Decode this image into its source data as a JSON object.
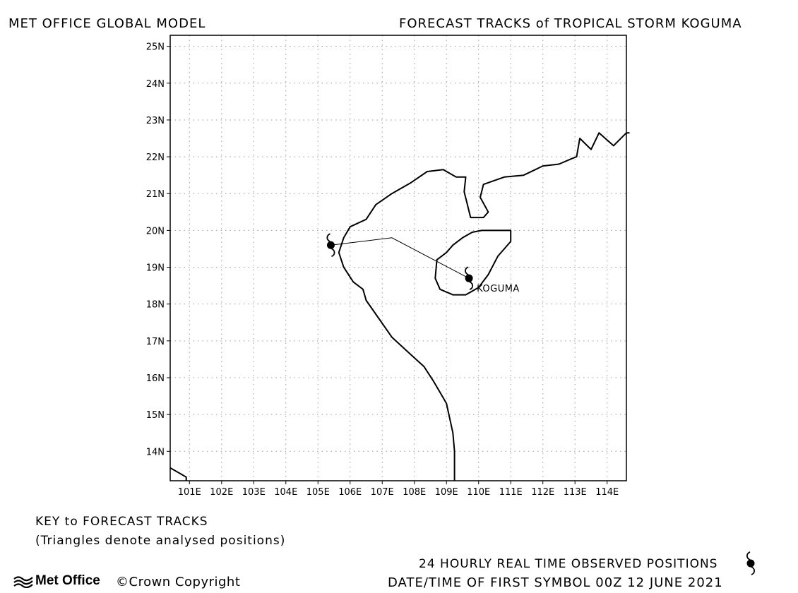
{
  "header": {
    "left_title": "MET OFFICE GLOBAL MODEL",
    "right_title": "FORECAST TRACKS of TROPICAL STORM KOGUMA"
  },
  "map": {
    "lon_range": [
      100.4,
      114.6
    ],
    "lat_range": [
      13.2,
      25.3
    ],
    "lon_ticks": [
      {
        "v": 101,
        "label": "101E"
      },
      {
        "v": 102,
        "label": "102E"
      },
      {
        "v": 103,
        "label": "103E"
      },
      {
        "v": 104,
        "label": "104E"
      },
      {
        "v": 105,
        "label": "105E"
      },
      {
        "v": 106,
        "label": "106E"
      },
      {
        "v": 107,
        "label": "107E"
      },
      {
        "v": 108,
        "label": "108E"
      },
      {
        "v": 109,
        "label": "109E"
      },
      {
        "v": 110,
        "label": "110E"
      },
      {
        "v": 111,
        "label": "111E"
      },
      {
        "v": 112,
        "label": "112E"
      },
      {
        "v": 113,
        "label": "113E"
      },
      {
        "v": 114,
        "label": "114E"
      }
    ],
    "lat_ticks": [
      {
        "v": 14,
        "label": "14N"
      },
      {
        "v": 15,
        "label": "15N"
      },
      {
        "v": 16,
        "label": "16N"
      },
      {
        "v": 17,
        "label": "17N"
      },
      {
        "v": 18,
        "label": "18N"
      },
      {
        "v": 19,
        "label": "19N"
      },
      {
        "v": 20,
        "label": "20N"
      },
      {
        "v": 21,
        "label": "21N"
      },
      {
        "v": 22,
        "label": "22N"
      },
      {
        "v": 23,
        "label": "23N"
      },
      {
        "v": 24,
        "label": "24N"
      },
      {
        "v": 25,
        "label": "25N"
      }
    ],
    "grid": true,
    "storm": {
      "name": "KOGUMA",
      "track": [
        [
          109.7,
          18.7
        ],
        [
          107.3,
          19.8
        ],
        [
          105.4,
          19.6
        ]
      ],
      "observed_positions": [
        [
          109.7,
          18.7
        ],
        [
          105.4,
          19.6
        ]
      ]
    },
    "coastline": [
      [
        109.25,
        13.2
      ],
      [
        109.25,
        14.0
      ],
      [
        109.2,
        14.5
      ],
      [
        109.0,
        15.3
      ],
      [
        108.8,
        15.6
      ],
      [
        108.6,
        15.9
      ],
      [
        108.3,
        16.3
      ],
      [
        107.8,
        16.7
      ],
      [
        107.3,
        17.1
      ],
      [
        106.9,
        17.6
      ],
      [
        106.5,
        18.1
      ],
      [
        106.4,
        18.4
      ],
      [
        106.1,
        18.6
      ],
      [
        105.8,
        19.0
      ],
      [
        105.65,
        19.4
      ],
      [
        105.8,
        19.8
      ],
      [
        106.0,
        20.1
      ],
      [
        106.5,
        20.3
      ],
      [
        106.8,
        20.7
      ],
      [
        107.3,
        21.0
      ],
      [
        107.9,
        21.3
      ],
      [
        108.4,
        21.6
      ],
      [
        108.9,
        21.65
      ],
      [
        109.3,
        21.45
      ],
      [
        109.6,
        21.45
      ],
      [
        109.55,
        21.05
      ],
      [
        109.75,
        20.35
      ],
      [
        110.15,
        20.35
      ],
      [
        110.3,
        20.5
      ],
      [
        110.05,
        20.9
      ],
      [
        110.15,
        21.25
      ],
      [
        110.8,
        21.45
      ],
      [
        111.4,
        21.5
      ],
      [
        112.0,
        21.75
      ],
      [
        112.5,
        21.8
      ],
      [
        112.9,
        21.95
      ],
      [
        113.05,
        22.0
      ],
      [
        113.15,
        22.5
      ],
      [
        113.5,
        22.2
      ],
      [
        113.75,
        22.65
      ],
      [
        114.2,
        22.3
      ],
      [
        114.6,
        22.65
      ],
      [
        114.7,
        22.65
      ]
    ],
    "hainan": [
      [
        109.0,
        19.4
      ],
      [
        108.7,
        19.2
      ],
      [
        108.65,
        18.7
      ],
      [
        108.8,
        18.4
      ],
      [
        109.2,
        18.25
      ],
      [
        109.6,
        18.25
      ],
      [
        110.0,
        18.45
      ],
      [
        110.3,
        18.8
      ],
      [
        110.6,
        19.3
      ],
      [
        110.8,
        19.5
      ],
      [
        111.0,
        19.7
      ],
      [
        111.0,
        20.0
      ],
      [
        110.6,
        20.0
      ],
      [
        110.1,
        20.0
      ],
      [
        109.8,
        19.95
      ],
      [
        109.5,
        19.8
      ],
      [
        109.2,
        19.6
      ]
    ],
    "corner_coast": [
      [
        100.4,
        13.55
      ],
      [
        100.9,
        13.3
      ],
      [
        100.9,
        13.2
      ]
    ]
  },
  "key": {
    "title": "KEY to FORECAST TRACKS",
    "note": "(Triangles denote analysed positions)"
  },
  "footer": {
    "observed_label": "24 HOURLY REAL TIME OBSERVED POSITIONS",
    "first_symbol_label": "DATE/TIME OF FIRST SYMBOL 00Z 12 JUNE 2021",
    "brand": "Met Office",
    "copyright": "©Crown Copyright"
  }
}
